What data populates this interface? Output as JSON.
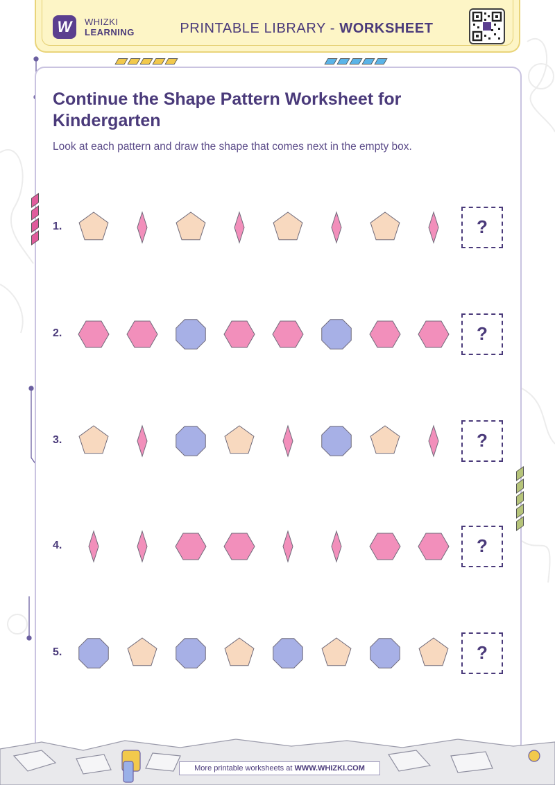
{
  "header": {
    "brand_line1": "WHIZKI",
    "brand_line2": "LEARNING",
    "logo_letter": "W",
    "title_prefix": "PRINTABLE LIBRARY - ",
    "title_bold": "WORKSHEET",
    "qr_center_letter": "W"
  },
  "worksheet": {
    "title": "Continue the Shape Pattern Worksheet for Kindergarten",
    "instructions": "Look at each pattern and draw the shape that comes next in the empty box.",
    "answer_placeholder": "?",
    "rows": [
      {
        "number": "1.",
        "shapes": [
          "pentagon",
          "diamond",
          "pentagon",
          "diamond",
          "pentagon",
          "diamond",
          "pentagon",
          "diamond"
        ]
      },
      {
        "number": "2.",
        "shapes": [
          "hexagon",
          "hexagon",
          "octagon",
          "hexagon",
          "hexagon",
          "octagon",
          "hexagon",
          "hexagon"
        ]
      },
      {
        "number": "3.",
        "shapes": [
          "pentagon",
          "diamond",
          "octagon",
          "pentagon",
          "diamond",
          "octagon",
          "pentagon",
          "diamond"
        ]
      },
      {
        "number": "4.",
        "shapes": [
          "diamond",
          "diamond",
          "hexagon",
          "hexagon",
          "diamond",
          "diamond",
          "hexagon",
          "hexagon"
        ]
      },
      {
        "number": "5.",
        "shapes": [
          "octagon",
          "pentagon",
          "octagon",
          "pentagon",
          "octagon",
          "pentagon",
          "octagon",
          "pentagon"
        ]
      }
    ]
  },
  "colors": {
    "pentagon": "#f8d9bf",
    "diamond": "#f28fbb",
    "hexagon": "#f28fbb",
    "octagon": "#a7b0e6",
    "accent": "#4a3a7a"
  },
  "footer": {
    "text_prefix": "More printable worksheets at ",
    "text_bold": "WWW.WHIZKI.COM"
  }
}
